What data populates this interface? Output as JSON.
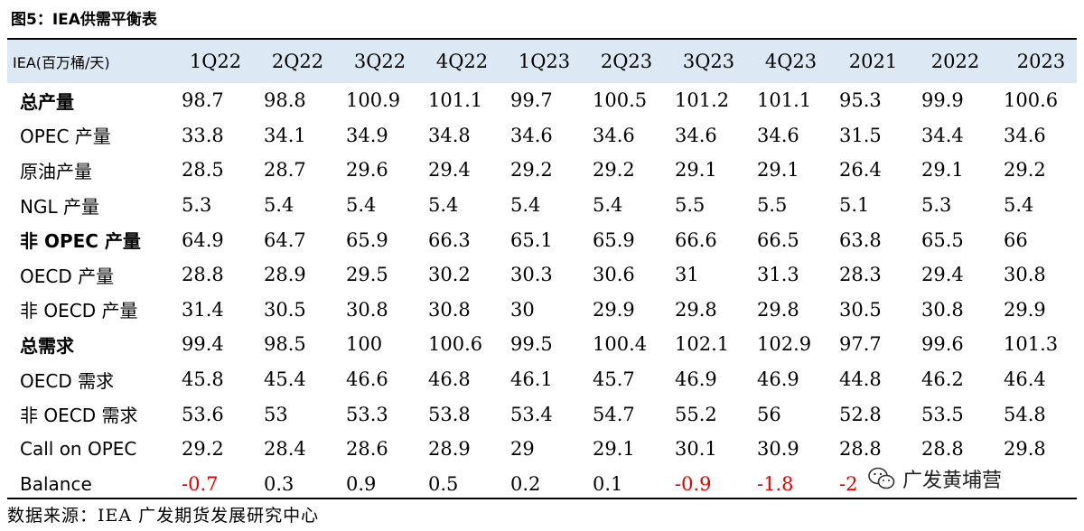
{
  "title": "图5：IEA供需平衡表",
  "table": {
    "header": [
      "IEA(百万桶/天)",
      "1Q22",
      "2Q22",
      "3Q22",
      "4Q22",
      "1Q23",
      "2Q23",
      "3Q23",
      "4Q23",
      "2021",
      "2022",
      "2023"
    ],
    "rows": [
      {
        "label": "总产量",
        "values": [
          "98.7",
          "98.8",
          "100.9",
          "101.1",
          "99.7",
          "100.5",
          "101.2",
          "101.1",
          "95.3",
          "99.9",
          "100.6"
        ]
      },
      {
        "label": "OPEC 产量",
        "values": [
          "33.8",
          "34.1",
          "34.9",
          "34.8",
          "34.6",
          "34.6",
          "34.6",
          "34.6",
          "31.5",
          "34.4",
          "34.6"
        ]
      },
      {
        "label": "原油产量",
        "values": [
          "28.5",
          "28.7",
          "29.6",
          "29.4",
          "29.2",
          "29.2",
          "29.1",
          "29.1",
          "26.4",
          "29.1",
          "29.2"
        ]
      },
      {
        "label": "NGL 产量",
        "values": [
          "5.3",
          "5.4",
          "5.4",
          "5.4",
          "5.4",
          "5.4",
          "5.5",
          "5.5",
          "5.1",
          "5.3",
          "5.4"
        ]
      },
      {
        "label": "非 OPEC 产量",
        "values": [
          "64.9",
          "64.7",
          "65.9",
          "66.3",
          "65.1",
          "65.9",
          "66.6",
          "66.5",
          "63.8",
          "65.5",
          "66"
        ]
      },
      {
        "label": "OECD 产量",
        "values": [
          "28.8",
          "28.9",
          "29.5",
          "30.2",
          "30.3",
          "30.6",
          "31",
          "31.3",
          "28.3",
          "29.4",
          "30.8"
        ]
      },
      {
        "label": "非 OECD 产量",
        "values": [
          "31.4",
          "30.5",
          "30.8",
          "30.8",
          "30",
          "29.9",
          "29.8",
          "29.8",
          "30.5",
          "30.8",
          "29.9"
        ]
      },
      {
        "label": "总需求",
        "values": [
          "99.4",
          "98.5",
          "100",
          "100.6",
          "99.5",
          "100.4",
          "102.1",
          "102.9",
          "97.7",
          "99.6",
          "101.3"
        ]
      },
      {
        "label": "OECD 需求",
        "values": [
          "45.8",
          "45.4",
          "46.6",
          "46.8",
          "46.1",
          "45.7",
          "46.9",
          "46.9",
          "44.8",
          "46.2",
          "46.4"
        ]
      },
      {
        "label": "非 OECD 需求",
        "values": [
          "53.6",
          "53",
          "53.3",
          "53.8",
          "53.4",
          "54.7",
          "55.2",
          "56",
          "52.8",
          "53.5",
          "54.8"
        ]
      },
      {
        "label": "Call on OPEC",
        "values": [
          "29.2",
          "28.4",
          "28.6",
          "28.9",
          "29",
          "29.1",
          "30.1",
          "30.9",
          "28.8",
          "28.8",
          "29.8"
        ]
      },
      {
        "label": "Balance",
        "values": [
          "-0.7",
          "0.3",
          "0.9",
          "0.5",
          "0.2",
          "0.1",
          "-0.9",
          "-1.8",
          "-2",
          "",
          ""
        ]
      }
    ]
  },
  "source": "数据来源：IEA  广发期货发展研究中心",
  "watermark": {
    "icon": "wechat-icon",
    "text": "广发黄埔营"
  },
  "colors": {
    "negative": "#e60000",
    "header_bg": "#dce8f3"
  }
}
